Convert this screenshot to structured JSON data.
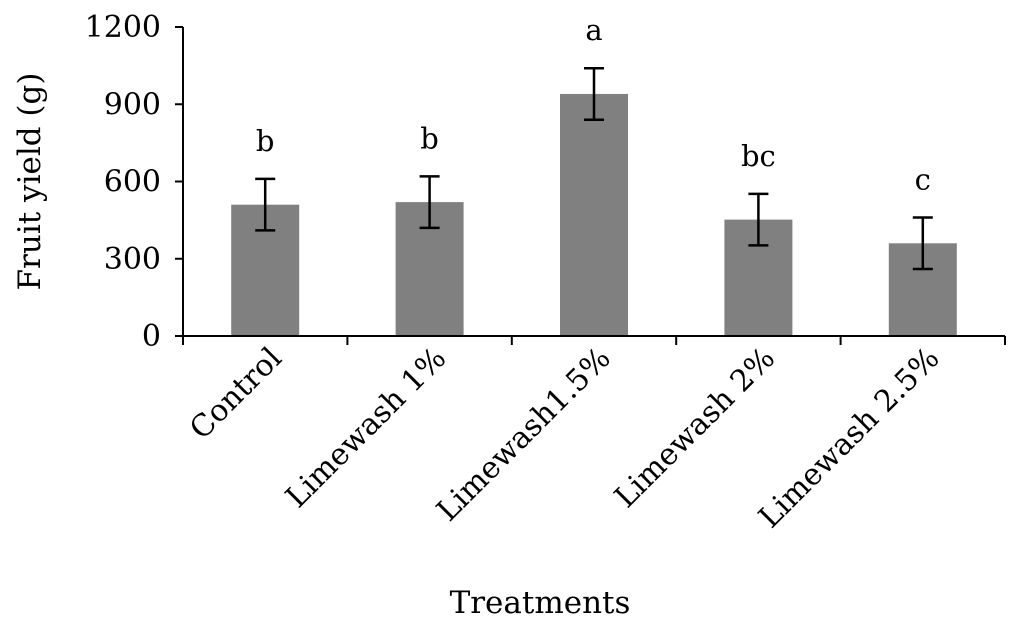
{
  "chart_data": {
    "type": "bar",
    "title": "",
    "xlabel": "Treatments",
    "ylabel": "Fruit yield (g)",
    "ylim": [
      0,
      1200
    ],
    "yticks": [
      0,
      300,
      600,
      900,
      1200
    ],
    "categories": [
      "Control",
      "Limewash 1%",
      "Limewash1.5%",
      "Limewash 2%",
      "Limewash 2.5%"
    ],
    "values": [
      510,
      520,
      940,
      452,
      360
    ],
    "error": [
      100,
      100,
      100,
      100,
      100
    ],
    "significance_letters": [
      "b",
      "b",
      "a",
      "bc",
      "c"
    ],
    "bar_color": "#808080",
    "grid": false,
    "legend": "none"
  }
}
